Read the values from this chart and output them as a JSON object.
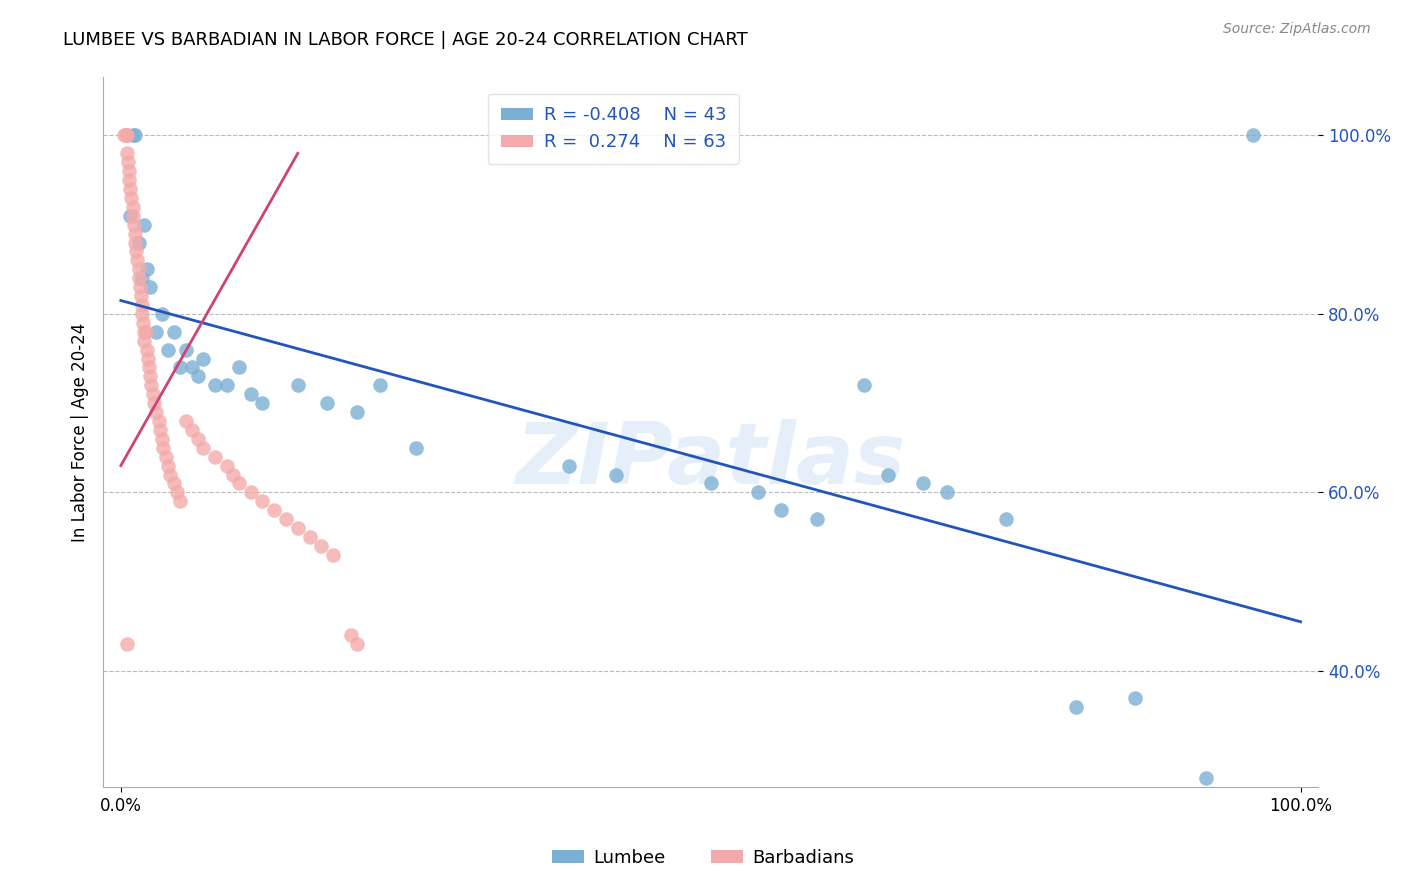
{
  "title": "LUMBEE VS BARBADIAN IN LABOR FORCE | AGE 20-24 CORRELATION CHART",
  "source": "Source: ZipAtlas.com",
  "ylabel_label": "In Labor Force | Age 20-24",
  "legend_label1": "Lumbee",
  "legend_label2": "Barbadians",
  "R1": -0.408,
  "N1": 43,
  "R2": 0.274,
  "N2": 63,
  "blue_color": "#7BAFD4",
  "pink_color": "#F4AAAA",
  "trend_blue": "#2255BB",
  "trend_pink": "#CC4477",
  "watermark_text": "ZIPatlas",
  "lumbee_x": [
    0.005,
    0.008,
    0.01,
    0.012,
    0.015,
    0.018,
    0.02,
    0.022,
    0.025,
    0.03,
    0.035,
    0.04,
    0.045,
    0.05,
    0.055,
    0.06,
    0.065,
    0.07,
    0.08,
    0.09,
    0.1,
    0.11,
    0.12,
    0.15,
    0.175,
    0.2,
    0.22,
    0.25,
    0.38,
    0.42,
    0.5,
    0.54,
    0.56,
    0.59,
    0.63,
    0.65,
    0.68,
    0.7,
    0.75,
    0.81,
    0.86,
    0.92,
    0.96
  ],
  "lumbee_y": [
    1.0,
    0.91,
    1.0,
    1.0,
    0.88,
    0.84,
    0.9,
    0.85,
    0.83,
    0.78,
    0.8,
    0.76,
    0.78,
    0.74,
    0.76,
    0.74,
    0.73,
    0.75,
    0.72,
    0.72,
    0.74,
    0.71,
    0.7,
    0.72,
    0.7,
    0.69,
    0.72,
    0.65,
    0.63,
    0.62,
    0.61,
    0.6,
    0.58,
    0.57,
    0.72,
    0.62,
    0.61,
    0.6,
    0.57,
    0.36,
    0.37,
    0.28,
    1.0
  ],
  "barbadian_x": [
    0.003,
    0.004,
    0.005,
    0.005,
    0.006,
    0.007,
    0.007,
    0.008,
    0.009,
    0.01,
    0.01,
    0.011,
    0.012,
    0.012,
    0.013,
    0.014,
    0.015,
    0.015,
    0.016,
    0.017,
    0.018,
    0.018,
    0.019,
    0.02,
    0.02,
    0.021,
    0.022,
    0.023,
    0.024,
    0.025,
    0.026,
    0.027,
    0.028,
    0.03,
    0.032,
    0.033,
    0.035,
    0.036,
    0.038,
    0.04,
    0.042,
    0.045,
    0.048,
    0.05,
    0.055,
    0.06,
    0.065,
    0.07,
    0.08,
    0.09,
    0.095,
    0.1,
    0.11,
    0.12,
    0.13,
    0.14,
    0.15,
    0.16,
    0.17,
    0.18,
    0.195,
    0.2,
    0.005
  ],
  "barbadian_y": [
    1.0,
    1.0,
    1.0,
    0.98,
    0.97,
    0.96,
    0.95,
    0.94,
    0.93,
    0.92,
    0.91,
    0.9,
    0.89,
    0.88,
    0.87,
    0.86,
    0.85,
    0.84,
    0.83,
    0.82,
    0.81,
    0.8,
    0.79,
    0.78,
    0.77,
    0.78,
    0.76,
    0.75,
    0.74,
    0.73,
    0.72,
    0.71,
    0.7,
    0.69,
    0.68,
    0.67,
    0.66,
    0.65,
    0.64,
    0.63,
    0.62,
    0.61,
    0.6,
    0.59,
    0.68,
    0.67,
    0.66,
    0.65,
    0.64,
    0.63,
    0.62,
    0.61,
    0.6,
    0.59,
    0.58,
    0.57,
    0.56,
    0.55,
    0.54,
    0.53,
    0.44,
    0.43,
    0.43
  ],
  "blue_trend_x": [
    0.0,
    1.0
  ],
  "blue_trend_y": [
    0.815,
    0.455
  ],
  "pink_trend_x": [
    0.0,
    0.15
  ],
  "pink_trend_y": [
    0.63,
    0.98
  ],
  "ylim": [
    0.27,
    1.065
  ],
  "xlim": [
    -0.015,
    1.015
  ],
  "yticks": [
    0.4,
    0.6,
    0.8,
    1.0
  ],
  "ytick_labels": [
    "40.0%",
    "60.0%",
    "80.0%",
    "100.0%"
  ],
  "xticks": [
    0.0,
    1.0
  ],
  "xtick_labels": [
    "0.0%",
    "100.0%"
  ]
}
